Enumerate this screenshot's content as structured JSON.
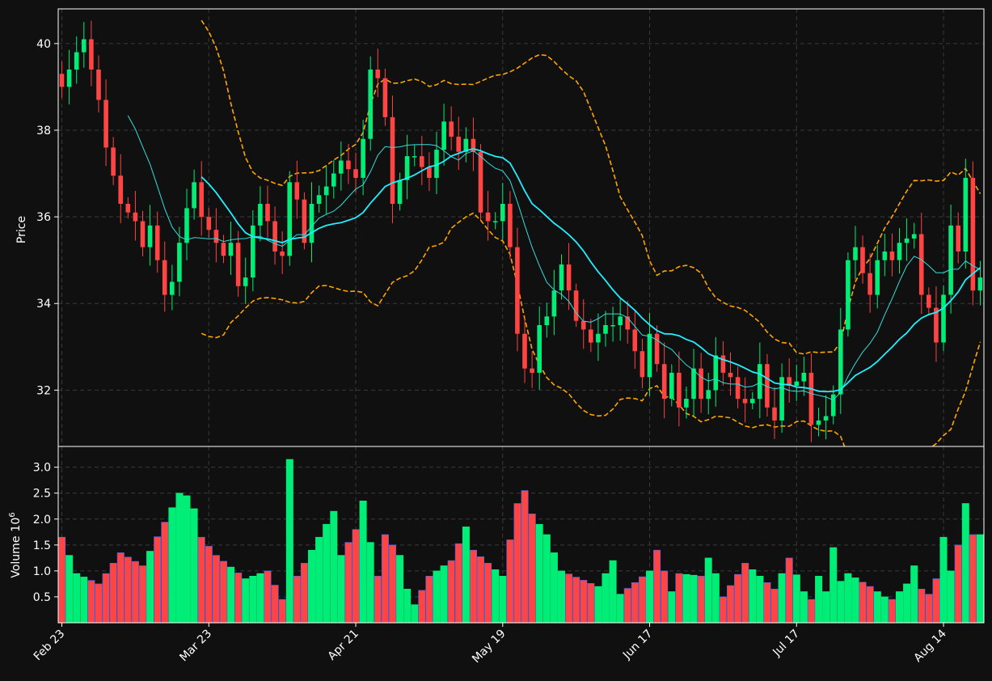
{
  "chart_data": {
    "type": "candlestick",
    "colors": {
      "background": "#101010",
      "up": "#00ee77",
      "down": "#ff4444",
      "volume_edge": "#4466ee",
      "ma_short": "#33dddd",
      "ma_long": "#22eeff",
      "band": "#ffa500",
      "grid": "#3a3a3a",
      "axis": "#ffffff"
    },
    "grid": true,
    "price_panel": {
      "ylabel": "Price",
      "ylim": [
        30.7,
        40.8
      ],
      "yticks": [
        "32",
        "34",
        "36",
        "38",
        "40"
      ],
      "ytick_values": [
        32,
        34,
        36,
        38,
        40
      ]
    },
    "volume_panel": {
      "ylabel": "Volume",
      "ylabel_exponent": "6",
      "ylim": [
        0.0,
        3.4
      ],
      "yticks": [
        "0.5",
        "1.0",
        "1.5",
        "2.0",
        "2.5",
        "3.0"
      ],
      "ytick_values": [
        0.5,
        1.0,
        1.5,
        2.0,
        2.5,
        3.0
      ],
      "unit": "10^6"
    },
    "xticks": [
      {
        "label": "Feb 23",
        "index": 0
      },
      {
        "label": "Mar 23",
        "index": 20
      },
      {
        "label": "Apr 21",
        "index": 40
      },
      {
        "label": "May 19",
        "index": 60
      },
      {
        "label": "Jun 17",
        "index": 80
      },
      {
        "label": "Jul 17",
        "index": 100
      },
      {
        "label": "Aug 14",
        "index": 120
      }
    ],
    "n_days": 126,
    "close_anchors": [
      [
        0,
        39.0
      ],
      [
        2,
        39.8
      ],
      [
        3,
        40.1
      ],
      [
        5,
        38.7
      ],
      [
        6,
        37.6
      ],
      [
        8,
        36.3
      ],
      [
        10,
        35.9
      ],
      [
        11,
        35.3
      ],
      [
        12,
        35.8
      ],
      [
        14,
        34.2
      ],
      [
        15,
        34.5
      ],
      [
        16,
        35.4
      ],
      [
        17,
        36.2
      ],
      [
        18,
        36.8
      ],
      [
        19,
        36.0
      ],
      [
        21,
        35.4
      ],
      [
        22,
        35.1
      ],
      [
        23,
        35.4
      ],
      [
        24,
        34.4
      ],
      [
        25,
        34.6
      ],
      [
        26,
        35.8
      ],
      [
        27,
        36.3
      ],
      [
        28,
        35.9
      ],
      [
        29,
        35.2
      ],
      [
        30,
        35.1
      ],
      [
        31,
        36.8
      ],
      [
        32,
        36.4
      ],
      [
        33,
        35.4
      ],
      [
        34,
        36.3
      ],
      [
        36,
        36.7
      ],
      [
        38,
        37.3
      ],
      [
        40,
        36.9
      ],
      [
        41,
        37.8
      ],
      [
        42,
        39.4
      ],
      [
        43,
        39.2
      ],
      [
        44,
        38.3
      ],
      [
        45,
        36.3
      ],
      [
        47,
        37.4
      ],
      [
        48,
        37.4
      ],
      [
        50,
        36.9
      ],
      [
        52,
        38.2
      ],
      [
        54,
        37.5
      ],
      [
        55,
        37.8
      ],
      [
        56,
        37.5
      ],
      [
        57,
        36.1
      ],
      [
        58,
        35.9
      ],
      [
        59,
        35.9
      ],
      [
        60,
        36.3
      ],
      [
        61,
        35.3
      ],
      [
        62,
        33.3
      ],
      [
        63,
        32.5
      ],
      [
        64,
        32.4
      ],
      [
        65,
        33.5
      ],
      [
        66,
        33.7
      ],
      [
        67,
        34.3
      ],
      [
        68,
        34.9
      ],
      [
        69,
        34.3
      ],
      [
        70,
        33.6
      ],
      [
        71,
        33.4
      ],
      [
        72,
        33.1
      ],
      [
        73,
        33.3
      ],
      [
        74,
        33.5
      ],
      [
        75,
        33.5
      ],
      [
        76,
        33.7
      ],
      [
        77,
        33.4
      ],
      [
        78,
        32.9
      ],
      [
        79,
        32.3
      ],
      [
        80,
        33.3
      ],
      [
        81,
        32.6
      ],
      [
        82,
        31.8
      ],
      [
        83,
        32.4
      ],
      [
        84,
        31.6
      ],
      [
        85,
        31.8
      ],
      [
        86,
        32.5
      ],
      [
        87,
        31.8
      ],
      [
        88,
        32.0
      ],
      [
        89,
        32.8
      ],
      [
        90,
        32.4
      ],
      [
        91,
        32.3
      ],
      [
        92,
        31.8
      ],
      [
        93,
        31.7
      ],
      [
        94,
        31.8
      ],
      [
        95,
        32.6
      ],
      [
        96,
        31.6
      ],
      [
        97,
        31.3
      ],
      [
        98,
        32.3
      ],
      [
        99,
        32.1
      ],
      [
        100,
        32.2
      ],
      [
        101,
        32.4
      ],
      [
        102,
        31.2
      ],
      [
        103,
        31.3
      ],
      [
        104,
        31.4
      ],
      [
        105,
        31.9
      ],
      [
        106,
        33.4
      ],
      [
        107,
        35.0
      ],
      [
        108,
        35.3
      ],
      [
        109,
        34.7
      ],
      [
        110,
        34.2
      ],
      [
        111,
        35.0
      ],
      [
        112,
        35.2
      ],
      [
        113,
        35.0
      ],
      [
        114,
        35.4
      ],
      [
        115,
        35.5
      ],
      [
        116,
        35.6
      ],
      [
        117,
        34.2
      ],
      [
        118,
        33.9
      ],
      [
        119,
        33.1
      ],
      [
        120,
        34.2
      ],
      [
        121,
        35.8
      ],
      [
        122,
        35.2
      ],
      [
        123,
        36.9
      ],
      [
        124,
        34.3
      ],
      [
        125,
        34.6
      ]
    ],
    "volume_anchors": [
      [
        0,
        1.65
      ],
      [
        2,
        0.95
      ],
      [
        5,
        0.75
      ],
      [
        8,
        1.35
      ],
      [
        11,
        1.1
      ],
      [
        16,
        2.5
      ],
      [
        17,
        2.45
      ],
      [
        18,
        2.2
      ],
      [
        19,
        1.65
      ],
      [
        21,
        1.3
      ],
      [
        25,
        0.85
      ],
      [
        28,
        1.0
      ],
      [
        30,
        0.45
      ],
      [
        31,
        3.15
      ],
      [
        32,
        0.9
      ],
      [
        37,
        2.15
      ],
      [
        38,
        1.3
      ],
      [
        40,
        1.8
      ],
      [
        41,
        2.35
      ],
      [
        42,
        1.55
      ],
      [
        43,
        0.9
      ],
      [
        44,
        1.7
      ],
      [
        46,
        1.3
      ],
      [
        47,
        0.65
      ],
      [
        48,
        0.35
      ],
      [
        50,
        0.9
      ],
      [
        53,
        1.2
      ],
      [
        55,
        1.85
      ],
      [
        56,
        1.4
      ],
      [
        60,
        0.9
      ],
      [
        62,
        2.3
      ],
      [
        63,
        2.55
      ],
      [
        64,
        2.1
      ],
      [
        66,
        1.7
      ],
      [
        68,
        1.0
      ],
      [
        73,
        0.7
      ],
      [
        75,
        1.2
      ],
      [
        76,
        0.55
      ],
      [
        80,
        1.0
      ],
      [
        81,
        1.4
      ],
      [
        83,
        0.6
      ],
      [
        84,
        0.95
      ],
      [
        87,
        0.9
      ],
      [
        88,
        1.25
      ],
      [
        89,
        0.95
      ],
      [
        90,
        0.5
      ],
      [
        93,
        1.15
      ],
      [
        97,
        0.65
      ],
      [
        98,
        0.95
      ],
      [
        99,
        1.25
      ],
      [
        101,
        0.6
      ],
      [
        102,
        0.45
      ],
      [
        103,
        0.9
      ],
      [
        104,
        0.6
      ],
      [
        105,
        1.45
      ],
      [
        106,
        0.8
      ],
      [
        107,
        0.95
      ],
      [
        110,
        0.7
      ],
      [
        112,
        0.5
      ],
      [
        113,
        0.45
      ],
      [
        115,
        0.75
      ],
      [
        116,
        1.1
      ],
      [
        117,
        0.65
      ],
      [
        118,
        0.55
      ],
      [
        119,
        0.85
      ],
      [
        120,
        1.65
      ],
      [
        121,
        1.0
      ],
      [
        122,
        1.5
      ],
      [
        123,
        2.3
      ],
      [
        124,
        1.7
      ],
      [
        125,
        1.7
      ]
    ],
    "ma_short_window": 10,
    "ma_long_window": 20,
    "band_window": 20,
    "band_sd": 2
  }
}
